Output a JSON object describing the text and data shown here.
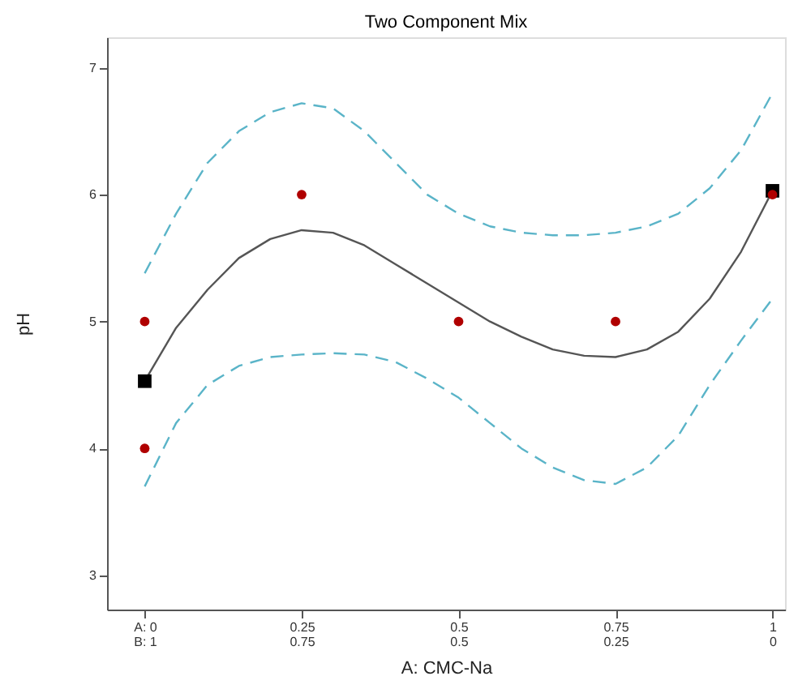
{
  "chart_data": {
    "type": "scatter",
    "title": "Two Component Mix",
    "xlabel": "A: CMC-Na",
    "ylabel": "pH",
    "xlim": [
      -0.06,
      1.02
    ],
    "ylim": [
      2.73,
      7.24
    ],
    "xticks": [
      {
        "value": 0,
        "label": "A: 0"
      },
      0.25,
      0.5,
      0.75,
      1
    ],
    "x2lim": [
      1.06,
      -0.02
    ],
    "x2ticks": [
      {
        "value": 1,
        "label": "B: 1"
      },
      0.75,
      0.5,
      0.25,
      0
    ],
    "yticks": [
      3,
      4,
      5,
      6,
      7
    ],
    "grid": false,
    "series": [
      {
        "type": "line",
        "color": "#5ab4c8",
        "line_style": "dashed",
        "x": [
          0,
          0.05,
          0.1,
          0.15,
          0.2,
          0.25,
          0.3,
          0.35,
          0.4,
          0.45,
          0.5,
          0.55,
          0.6,
          0.65,
          0.7,
          0.75,
          0.8,
          0.85,
          0.9,
          0.95,
          1
        ],
        "values": [
          5.38,
          5.85,
          6.25,
          6.5,
          6.65,
          6.72,
          6.68,
          6.5,
          6.25,
          6.0,
          5.85,
          5.75,
          5.7,
          5.68,
          5.68,
          5.7,
          5.75,
          5.85,
          6.05,
          6.35,
          6.8
        ]
      },
      {
        "type": "line",
        "color": "#5ab4c8",
        "line_style": "dashed",
        "x": [
          0,
          0.05,
          0.1,
          0.15,
          0.2,
          0.25,
          0.3,
          0.35,
          0.4,
          0.45,
          0.5,
          0.55,
          0.6,
          0.65,
          0.7,
          0.75,
          0.8,
          0.85,
          0.9,
          0.95,
          1
        ],
        "values": [
          3.7,
          4.2,
          4.5,
          4.65,
          4.72,
          4.74,
          4.75,
          4.74,
          4.68,
          4.55,
          4.4,
          4.2,
          4.0,
          3.85,
          3.75,
          3.72,
          3.85,
          4.1,
          4.5,
          4.85,
          5.18
        ]
      },
      {
        "type": "line",
        "color": "#555555",
        "line_style": "solid",
        "x": [
          0,
          0.05,
          0.1,
          0.15,
          0.2,
          0.25,
          0.3,
          0.35,
          0.4,
          0.45,
          0.5,
          0.55,
          0.6,
          0.65,
          0.7,
          0.75,
          0.8,
          0.85,
          0.9,
          0.95,
          1
        ],
        "values": [
          4.53,
          4.95,
          5.25,
          5.5,
          5.65,
          5.72,
          5.7,
          5.6,
          5.45,
          5.3,
          5.15,
          5.0,
          4.88,
          4.78,
          4.73,
          4.72,
          4.78,
          4.92,
          5.18,
          5.55,
          6.03
        ]
      },
      {
        "color": "#000000",
        "marker": "square",
        "x": [
          0,
          1
        ],
        "values": [
          4.53,
          6.03
        ]
      },
      {
        "color": "#b00000",
        "marker": "circle",
        "x": [
          0,
          0,
          0.25,
          0.5,
          0.75,
          1
        ],
        "values": [
          5,
          4,
          6,
          5,
          5,
          6
        ]
      }
    ]
  }
}
